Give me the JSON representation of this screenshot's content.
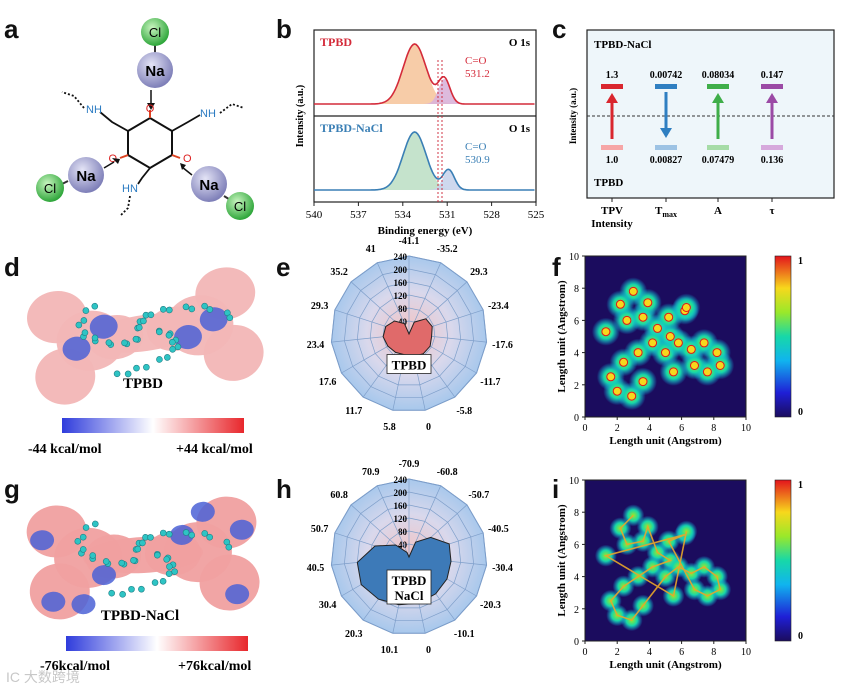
{
  "panel_letters": {
    "a": "a",
    "b": "b",
    "c": "c",
    "d": "d",
    "e": "e",
    "f": "f",
    "g": "g",
    "h": "h",
    "i": "i"
  },
  "panel_a": {
    "atoms": {
      "cl": "Cl",
      "na": "Na",
      "o": "O",
      "nh": "NH",
      "hn": "HN"
    }
  },
  "panel_b": {
    "ylabel": "Intensity (a.u.)",
    "xlabel": "Binding energy (eV)",
    "top": {
      "name": "TPBD",
      "level": "O 1s",
      "peak_label": "C=O",
      "peak_value": "531.2"
    },
    "bottom": {
      "name": "TPBD-NaCl",
      "level": "O 1s",
      "peak_label": "C=O",
      "peak_value": "530.9"
    },
    "colors": {
      "top": "#d42b3a",
      "bottom": "#3a7fb5",
      "top_fill": "#f6c79e",
      "bottom_fill": "#bfe0c6"
    }
  },
  "panel_c": {
    "top_label": "TPBD-NaCl",
    "bottom_label": "TPBD",
    "ylabel": "Intensity (a.u.)",
    "categories": [
      "TPV\nIntensity",
      "T",
      "A",
      "τ"
    ],
    "t_subscript": "max",
    "items": [
      {
        "top": "1.3",
        "bottom": "1.0",
        "direction": "up",
        "color": "#d9262e",
        "light": "#f6a6a6"
      },
      {
        "top": "0.00742",
        "bottom": "0.00827",
        "direction": "down",
        "color": "#2f7fc1",
        "light": "#9dc3e4"
      },
      {
        "top": "0.08034",
        "bottom": "0.07479",
        "direction": "up",
        "color": "#3fae49",
        "light": "#a6dca7"
      },
      {
        "top": "0.147",
        "bottom": "0.136",
        "direction": "up",
        "color": "#9b4aa5",
        "light": "#d6a9dc"
      }
    ]
  },
  "panel_d": {
    "name": "TPBD",
    "scale_min": "-44 kcal/mol",
    "scale_max": "+44 kcal/mol"
  },
  "panel_g": {
    "name": "TPBD-NaCl",
    "scale_min": "-76kcal/mol",
    "scale_max": "+76kcal/mol"
  },
  "panel_e": {
    "label": "TPBD",
    "angles": [
      "-41.1",
      "-35.2",
      "29.3",
      "-23.4",
      "-17.6",
      "-11.7",
      "-5.8",
      "0",
      "5.8",
      "11.7",
      "17.6",
      "23.4",
      "29.3",
      "35.2",
      "41"
    ],
    "radial_ticks": [
      "0",
      "40",
      "80",
      "120",
      "160",
      "200",
      "240"
    ],
    "rmax": 240,
    "values": [
      0,
      40,
      70,
      75,
      70,
      75,
      75,
      70,
      65,
      70,
      75,
      80,
      75,
      60,
      35
    ],
    "fill": "#e06a6a"
  },
  "panel_h": {
    "label": "TPBD\nNaCl",
    "angles": [
      "-70.9",
      "-60.8",
      "-50.7",
      "-40.5",
      "-30.4",
      "-20.3",
      "-10.1",
      "0",
      "10.1",
      "20.3",
      "30.4",
      "40.5",
      "50.7",
      "60.8",
      "70.9"
    ],
    "radial_ticks": [
      "0",
      "40",
      "80",
      "120",
      "160",
      "200",
      "240"
    ],
    "rmax": 240,
    "values": [
      0,
      50,
      90,
      130,
      130,
      135,
      140,
      145,
      150,
      160,
      170,
      160,
      110,
      55,
      15
    ],
    "fill": "#3d7ab8"
  },
  "panel_f": {
    "xlabel": "Length unit (Angstrom)",
    "ylabel": "Length unit (Angstrom)",
    "xticks": [
      "0",
      "2",
      "4",
      "6",
      "8",
      "10"
    ],
    "yticks": [
      "0",
      "2",
      "4",
      "6",
      "8",
      "10"
    ],
    "cbar_max": "1",
    "cbar_min": "0"
  },
  "panel_i": {
    "xlabel": "Length unit (Angstrom)",
    "ylabel": "Length unit (Angstrom)",
    "xticks": [
      "0",
      "2",
      "4",
      "6",
      "8",
      "10"
    ],
    "yticks": [
      "0",
      "2",
      "4",
      "6",
      "8",
      "10"
    ],
    "cbar_max": "1",
    "cbar_min": "0"
  },
  "panel_b_axis": {
    "xticks": [
      "540",
      "537",
      "534",
      "531",
      "528",
      "525"
    ]
  },
  "watermark": "IC 大数跨境"
}
